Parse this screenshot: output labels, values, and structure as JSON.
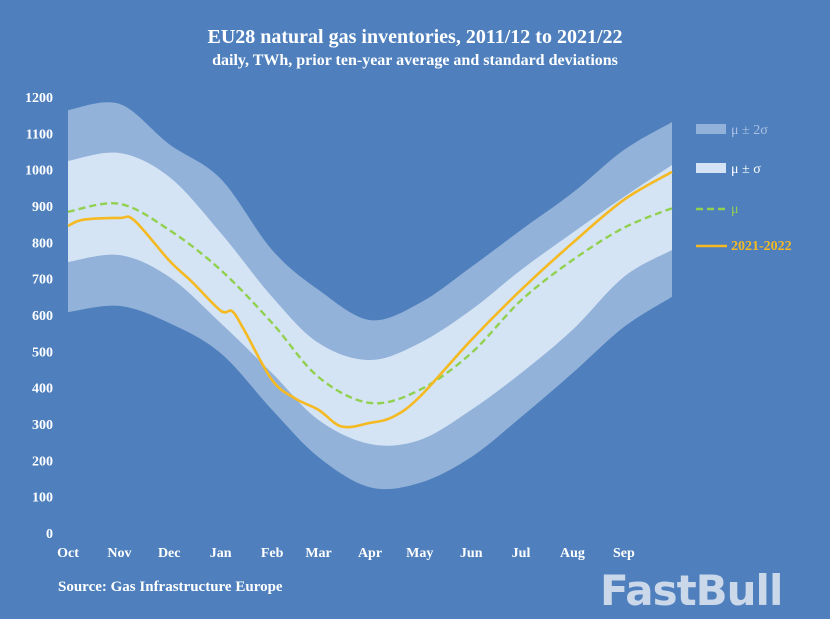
{
  "chart_data": {
    "type": "area",
    "title": "EU28 natural gas inventories, 2011/12 to 2021/22",
    "subtitle": "daily, TWh, prior ten-year average and standard deviations",
    "source": "Source: Gas Infrastructure Europe",
    "xlabel": "",
    "ylabel": "",
    "ylim": [
      0,
      1200
    ],
    "yticks": [
      0,
      100,
      200,
      300,
      400,
      500,
      600,
      700,
      800,
      900,
      1000,
      1100,
      1200
    ],
    "xlim": [
      "2021-10-01",
      "2022-09-30"
    ],
    "xticks": [
      {
        "date": "2021-10-01",
        "label": "Oct"
      },
      {
        "date": "2021-11-01",
        "label": "Nov"
      },
      {
        "date": "2021-12-01",
        "label": "Dec"
      },
      {
        "date": "2022-01-01",
        "label": "Jan"
      },
      {
        "date": "2022-02-01",
        "label": "Feb"
      },
      {
        "date": "2022-03-01",
        "label": "Mar"
      },
      {
        "date": "2022-04-01",
        "label": "Apr"
      },
      {
        "date": "2022-05-01",
        "label": "May"
      },
      {
        "date": "2022-06-01",
        "label": "Jun"
      },
      {
        "date": "2022-07-01",
        "label": "Jul"
      },
      {
        "date": "2022-08-01",
        "label": "Aug"
      },
      {
        "date": "2022-09-01",
        "label": "Sep"
      }
    ],
    "grid": false,
    "legend_placement": "right",
    "x": [
      "2021-10-01",
      "2021-11-01",
      "2021-12-01",
      "2022-01-01",
      "2022-02-01",
      "2022-03-01",
      "2022-04-01",
      "2022-05-01",
      "2022-06-01",
      "2022-07-01",
      "2022-08-01",
      "2022-09-01",
      "2022-09-30"
    ],
    "bands": [
      {
        "name": "μ ± 2σ",
        "color": "#93b2d9",
        "upper": [
          1164,
          1181,
          1070,
          975,
          779,
          669,
          586,
          633,
          732,
          834,
          936,
          1054,
          1131
        ],
        "lower": [
          608,
          625,
          578,
          495,
          339,
          209,
          126,
          138,
          209,
          319,
          440,
          567,
          650
        ]
      },
      {
        "name": "μ ± σ",
        "color": "#d4e4f4",
        "upper": [
          1024,
          1046,
          980,
          826,
          650,
          523,
          476,
          523,
          614,
          724,
          826,
          925,
          1013
        ],
        "lower": [
          746,
          765,
          705,
          578,
          440,
          311,
          245,
          256,
          339,
          440,
          559,
          705,
          779
        ]
      }
    ],
    "series": [
      {
        "name": "μ",
        "color": "#92d050",
        "style": "dashed",
        "x": [
          "2021-10-01",
          "2021-11-01",
          "2021-12-01",
          "2022-01-01",
          "2022-02-01",
          "2022-03-01",
          "2022-04-01",
          "2022-05-01",
          "2022-06-01",
          "2022-07-01",
          "2022-08-01",
          "2022-09-01",
          "2022-09-30"
        ],
        "values": [
          884,
          906,
          834,
          724,
          578,
          429,
          358,
          394,
          495,
          640,
          751,
          840,
          894
        ]
      },
      {
        "name": "2021-2022",
        "color": "#f5b921",
        "style": "solid",
        "x": [
          "2021-10-01",
          "2021-10-10",
          "2021-11-01",
          "2021-11-10",
          "2021-12-01",
          "2021-12-15",
          "2022-01-01",
          "2022-01-08",
          "2022-01-15",
          "2022-02-01",
          "2022-02-15",
          "2022-03-01",
          "2022-03-15",
          "2022-04-01",
          "2022-04-15",
          "2022-05-01",
          "2022-06-01",
          "2022-07-01",
          "2022-08-01",
          "2022-09-01",
          "2022-09-30"
        ],
        "values": [
          845,
          862,
          867,
          860,
          750,
          690,
          612,
          610,
          560,
          421,
          370,
          339,
          293,
          303,
          320,
          375,
          531,
          669,
          798,
          917,
          994
        ]
      }
    ]
  },
  "watermark": "FastBull"
}
